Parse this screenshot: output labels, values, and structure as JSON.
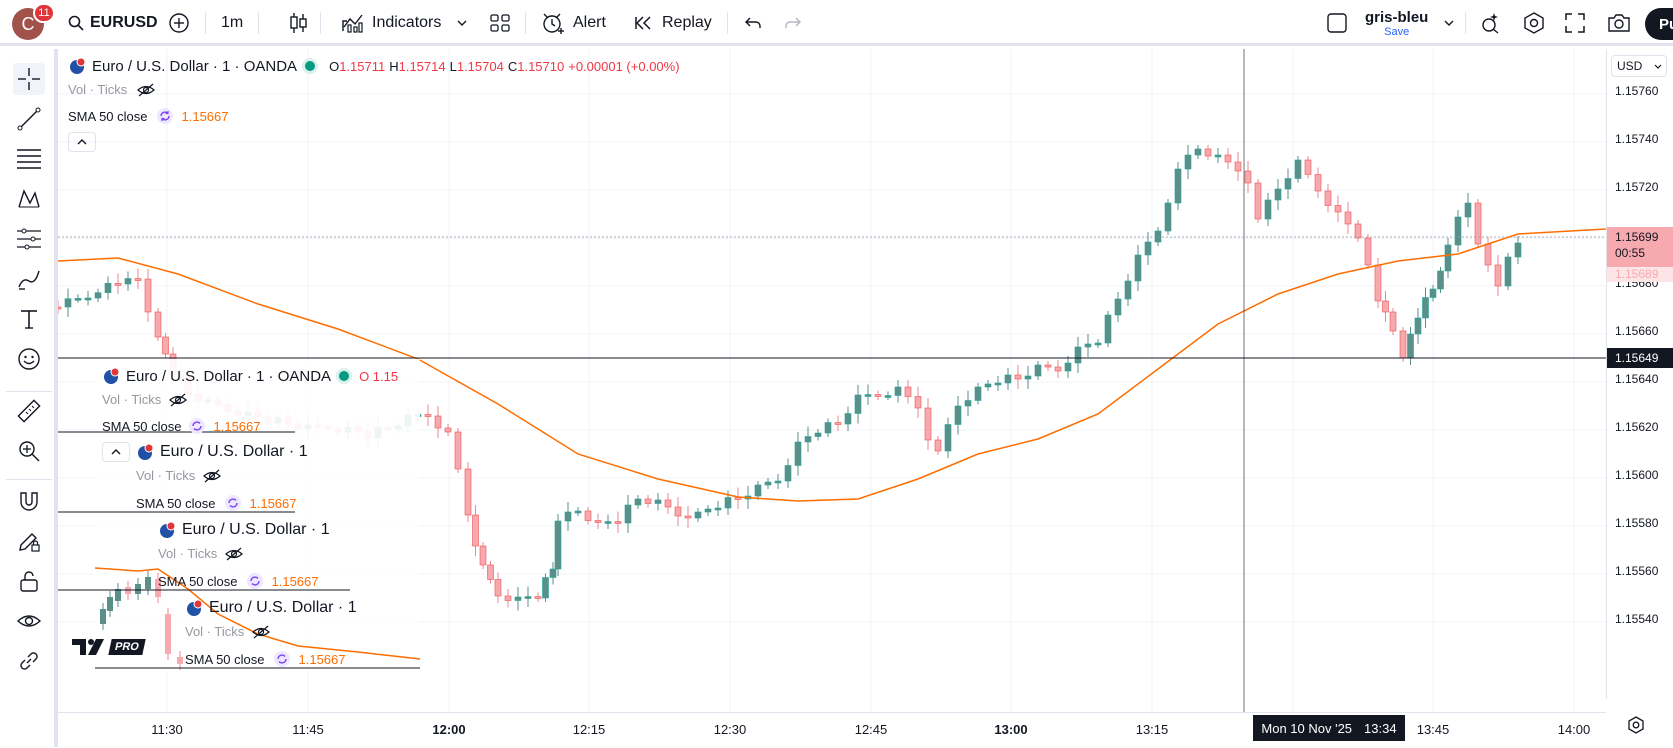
{
  "topbar": {
    "avatar_letter": "C",
    "notification_count": "11",
    "symbol": "EURUSD",
    "interval": "1m",
    "indicators_label": "Indicators",
    "alert_label": "Alert",
    "replay_label": "Replay",
    "layout_name": "gris-bleu",
    "save_label": "Save",
    "publish_label": "Pu"
  },
  "legend": {
    "title": "Euro / U.S. Dollar · 1 · OANDA",
    "open_label": "O",
    "open": "1.15711",
    "high_label": "H",
    "high": "1.15714",
    "low_label": "L",
    "low": "1.15704",
    "close_label": "C",
    "close": "1.15710",
    "change": "+0.00001 (+0.00%)",
    "vol_label": "Vol · Ticks",
    "sma_label": "SMA 50 close",
    "sma_value": "1.15667"
  },
  "ghost_legends": [
    {
      "title": "Euro / U.S. Dollar · 1 · OANDA",
      "open": "O 1.15",
      "vol": "Vol · Ticks",
      "sma": "SMA 50 close",
      "sma_value": "1.15667"
    },
    {
      "title": "Euro / U.S. Dollar · 1",
      "vol": "Vol · Ticks",
      "sma": "SMA 50 close",
      "sma_value": "1.15667"
    },
    {
      "title": "Euro / U.S. Dollar · 1",
      "vol": "Vol · Ticks",
      "sma": "SMA 50 close",
      "sma_value": "1.15667"
    },
    {
      "title": "Euro / U.S. Dollar · 1",
      "vol": "Vol · Ticks",
      "sma": "SMA 50 close",
      "sma_value": "1.15667"
    }
  ],
  "price_axis": {
    "currency": "USD",
    "labels": [
      "1.15760",
      "1.15740",
      "1.15720",
      "1.15680",
      "1.15660",
      "1.15640",
      "1.15620",
      "1.15600",
      "1.15580",
      "1.15560",
      "1.15540"
    ],
    "current_price": "1.15699",
    "countdown": "00:55",
    "sma_price": "1.15689",
    "crosshair_price": "1.15649"
  },
  "time_axis": {
    "labels": [
      "11:30",
      "11:45",
      "12:00",
      "12:15",
      "12:30",
      "12:45",
      "13:00",
      "13:15",
      "13:45",
      "14:00"
    ],
    "crosshair_time": "Mon 10 Nov '25",
    "crosshair_clock": "13:34"
  },
  "colors": {
    "up": "#26a69a",
    "down": "#ef5350",
    "sma": "#ff6d00",
    "accent": "#2962ff"
  },
  "logo_text": "PRO"
}
